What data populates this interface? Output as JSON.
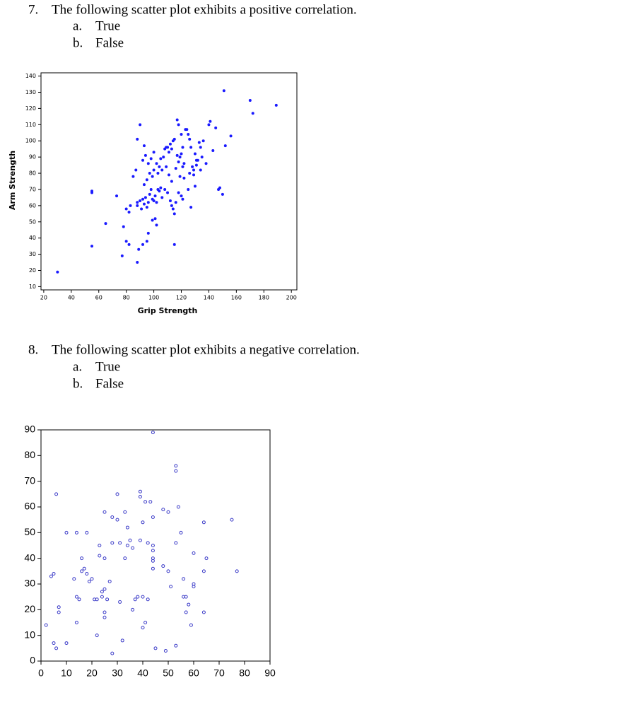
{
  "questions": [
    {
      "number": "7.",
      "text": "The following scatter plot exhibits a positive correlation.",
      "options": [
        {
          "letter": "a.",
          "text": "True"
        },
        {
          "letter": "b.",
          "text": "False"
        }
      ]
    },
    {
      "number": "8.",
      "text": "The following scatter plot exhibits a negative correlation.",
      "options": [
        {
          "letter": "a.",
          "text": "True"
        },
        {
          "letter": "b.",
          "text": "False"
        }
      ]
    }
  ],
  "chart_data": [
    {
      "type": "scatter",
      "x_label": "Grip Strength",
      "y_label": "Arm Strength",
      "xlim": [
        18,
        204
      ],
      "ylim": [
        8,
        142
      ],
      "xticks": [
        20,
        40,
        60,
        80,
        100,
        120,
        140,
        160,
        180,
        200
      ],
      "yticks": [
        10,
        20,
        30,
        40,
        50,
        60,
        70,
        80,
        90,
        100,
        110,
        120,
        130,
        140
      ],
      "marker_fill": true,
      "series": [
        {
          "color": "#1a1aff",
          "x": [
            30,
            55,
            55,
            55,
            65,
            73,
            78,
            77,
            80,
            82,
            80,
            82,
            83,
            85,
            87,
            88,
            89,
            90,
            88,
            93,
            92,
            95,
            96,
            99,
            101,
            102,
            115,
            145,
            143,
            147,
            150,
            151,
            152,
            156,
            170,
            172,
            189,
            148,
            88,
            88,
            90,
            91,
            92,
            93,
            94,
            95,
            96,
            97,
            98,
            99,
            100,
            101,
            102,
            103,
            104,
            105,
            106,
            108,
            110,
            112,
            113,
            114,
            115,
            116,
            118,
            120,
            121,
            125,
            127,
            130,
            93,
            95,
            97,
            99,
            100,
            102,
            104,
            105,
            107,
            108,
            109,
            110,
            111,
            112,
            113,
            114,
            115,
            117,
            118,
            119,
            120,
            121,
            122,
            123,
            124,
            125,
            126,
            127,
            128,
            129,
            130,
            131,
            132,
            133,
            134,
            135,
            136,
            138,
            140,
            141,
            118,
            120,
            92,
            94,
            96,
            98,
            100,
            103,
            106,
            109,
            111,
            113,
            116,
            119,
            122,
            126,
            129,
            131,
            134,
            117,
            121
          ],
          "values": [
            19,
            68,
            69,
            35,
            49,
            66,
            47,
            29,
            38,
            36,
            58,
            56,
            60,
            78,
            82,
            25,
            33,
            110,
            101,
            97,
            36,
            38,
            43,
            51,
            52,
            48,
            36,
            108,
            94,
            70,
            67,
            131,
            97,
            103,
            125,
            117,
            122,
            71,
            60,
            62,
            63,
            58,
            64,
            61,
            65,
            59,
            62,
            67,
            70,
            64,
            63,
            66,
            62,
            70,
            69,
            71,
            65,
            70,
            68,
            63,
            60,
            58,
            55,
            62,
            68,
            66,
            64,
            70,
            59,
            72,
            73,
            76,
            80,
            78,
            82,
            86,
            84,
            89,
            90,
            95,
            96,
            96,
            93,
            98,
            95,
            100,
            101,
            91,
            87,
            90,
            92,
            84,
            86,
            107,
            107,
            104,
            101,
            96,
            84,
            82,
            92,
            85,
            88,
            99,
            96,
            90,
            100,
            86,
            110,
            112,
            110,
            104,
            88,
            91,
            86,
            89,
            93,
            80,
            82,
            84,
            79,
            75,
            83,
            78,
            77,
            80,
            79,
            88,
            82,
            113,
            96
          ]
        }
      ]
    },
    {
      "type": "scatter",
      "xlim": [
        0,
        90
      ],
      "ylim": [
        0,
        90
      ],
      "xticks": [
        0,
        10,
        20,
        30,
        40,
        50,
        60,
        70,
        80,
        90
      ],
      "yticks": [
        0,
        10,
        20,
        30,
        40,
        50,
        60,
        70,
        80,
        90
      ],
      "marker_fill": false,
      "series": [
        {
          "color": "#3b3bc8",
          "x": [
            2,
            4,
            5,
            5,
            6,
            6,
            7,
            7,
            10,
            13,
            14,
            14,
            14,
            15,
            16,
            16,
            17,
            18,
            18,
            19,
            20,
            21,
            22,
            23,
            23,
            24,
            24,
            25,
            25,
            25,
            25,
            25,
            26,
            27,
            28,
            28,
            28,
            30,
            30,
            31,
            31,
            32,
            33,
            33,
            34,
            34,
            35,
            36,
            36,
            37,
            38,
            39,
            39,
            39,
            40,
            40,
            40,
            41,
            41,
            42,
            42,
            44,
            44,
            44,
            44,
            44,
            44,
            44,
            45,
            48,
            48,
            49,
            50,
            50,
            51,
            53,
            53,
            53,
            53,
            54,
            55,
            56,
            56,
            57,
            57,
            58,
            59,
            60,
            60,
            60,
            64,
            64,
            64,
            65,
            75,
            77,
            22,
            43,
            10
          ],
          "values": [
            14,
            33,
            34,
            7,
            5,
            65,
            21,
            19,
            7,
            32,
            15,
            50,
            25,
            24,
            40,
            35,
            36,
            34,
            50,
            31,
            32,
            24,
            10,
            45,
            41,
            27,
            25,
            40,
            28,
            17,
            19,
            58,
            24,
            31,
            46,
            56,
            3,
            65,
            55,
            23,
            46,
            8,
            58,
            40,
            45,
            52,
            47,
            44,
            20,
            24,
            25,
            66,
            64,
            47,
            13,
            25,
            54,
            15,
            62,
            24,
            46,
            89,
            56,
            45,
            43,
            40,
            39,
            36,
            5,
            59,
            37,
            4,
            58,
            35,
            29,
            6,
            46,
            74,
            76,
            60,
            50,
            32,
            25,
            19,
            25,
            22,
            14,
            29,
            42,
            30,
            19,
            35,
            54,
            40,
            55,
            35,
            24,
            62,
            50
          ]
        }
      ]
    }
  ]
}
